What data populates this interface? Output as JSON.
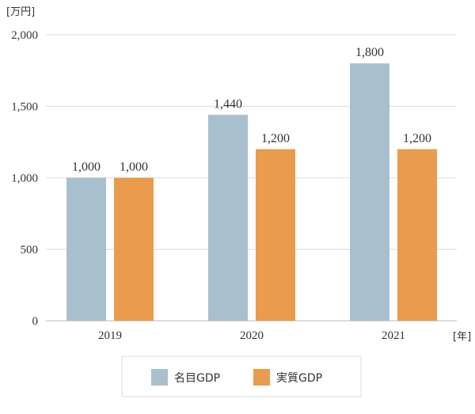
{
  "chart_data": {
    "type": "bar",
    "y_unit_label": "[万円]",
    "x_unit_label": "[年]",
    "categories": [
      "2019",
      "2020",
      "2021"
    ],
    "series": [
      {
        "name": "名目GDP",
        "values": [
          1000,
          1440,
          1800
        ],
        "color": "#a8bfce"
      },
      {
        "name": "実質GDP",
        "values": [
          1000,
          1200,
          1200
        ],
        "color": "#e99c4e"
      }
    ],
    "value_labels": [
      [
        "1,000",
        "1,440",
        "1,800"
      ],
      [
        "1,000",
        "1,200",
        "1,200"
      ]
    ],
    "yticks": [
      0,
      500,
      1000,
      1500,
      2000
    ],
    "ytick_labels": [
      "0",
      "500",
      "1,000",
      "1,500",
      "2,000"
    ],
    "ylim": [
      0,
      2000
    ],
    "grid": true,
    "legend_position": "bottom-center"
  }
}
